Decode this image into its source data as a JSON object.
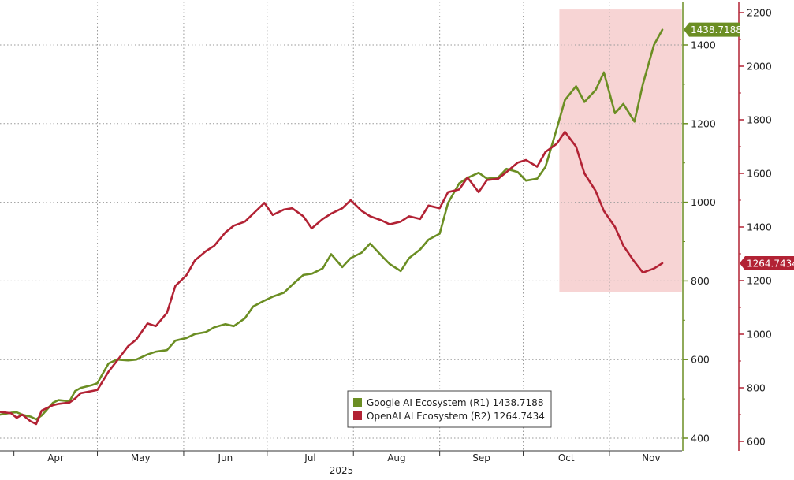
{
  "chart_data": {
    "type": "line",
    "x_axis": {
      "months": [
        "Apr",
        "May",
        "Jun",
        "Jul",
        "Aug",
        "Sep",
        "Oct",
        "Nov"
      ],
      "year": "2025"
    },
    "y_axis_r1": {
      "ticks": [
        400,
        600,
        800,
        1000,
        1200,
        1400
      ],
      "ylim": [
        370,
        1480
      ],
      "color": "#6b8e23"
    },
    "y_axis_r2": {
      "ticks": [
        600,
        800,
        1000,
        1200,
        1400,
        1600,
        1800,
        2000,
        2200
      ],
      "ylim": [
        560,
        2240
      ],
      "color": "#b22234"
    },
    "grid": true,
    "highlight_region": {
      "x_start": "2025-10-14",
      "x_end": "2025-11-27",
      "r1_low": 772,
      "r1_high": 1490,
      "color": "#f4c6c6"
    },
    "series": [
      {
        "name": "Google AI Ecosystem (R1)",
        "axis": "R1",
        "color": "#6b8e23",
        "last_value": "1438.7188",
        "points": [
          [
            "2025-03-27",
            460
          ],
          [
            "2025-03-31",
            465
          ],
          [
            "2025-04-02",
            466
          ],
          [
            "2025-04-04",
            460
          ],
          [
            "2025-04-07",
            455
          ],
          [
            "2025-04-09",
            448
          ],
          [
            "2025-04-11",
            458
          ],
          [
            "2025-04-15",
            490
          ],
          [
            "2025-04-17",
            497
          ],
          [
            "2025-04-21",
            494
          ],
          [
            "2025-04-23",
            520
          ],
          [
            "2025-04-25",
            528
          ],
          [
            "2025-04-29",
            535
          ],
          [
            "2025-05-01",
            540
          ],
          [
            "2025-05-05",
            590
          ],
          [
            "2025-05-08",
            600
          ],
          [
            "2025-05-12",
            598
          ],
          [
            "2025-05-15",
            600
          ],
          [
            "2025-05-19",
            613
          ],
          [
            "2025-05-22",
            620
          ],
          [
            "2025-05-26",
            624
          ],
          [
            "2025-05-29",
            648
          ],
          [
            "2025-06-02",
            655
          ],
          [
            "2025-06-05",
            665
          ],
          [
            "2025-06-09",
            670
          ],
          [
            "2025-06-12",
            682
          ],
          [
            "2025-06-16",
            690
          ],
          [
            "2025-06-19",
            685
          ],
          [
            "2025-06-23",
            705
          ],
          [
            "2025-06-26",
            735
          ],
          [
            "2025-06-30",
            750
          ],
          [
            "2025-07-03",
            760
          ],
          [
            "2025-07-07",
            770
          ],
          [
            "2025-07-10",
            790
          ],
          [
            "2025-07-14",
            815
          ],
          [
            "2025-07-17",
            818
          ],
          [
            "2025-07-21",
            832
          ],
          [
            "2025-07-24",
            868
          ],
          [
            "2025-07-28",
            835
          ],
          [
            "2025-07-31",
            858
          ],
          [
            "2025-08-04",
            872
          ],
          [
            "2025-08-07",
            895
          ],
          [
            "2025-08-11",
            865
          ],
          [
            "2025-08-14",
            843
          ],
          [
            "2025-08-18",
            825
          ],
          [
            "2025-08-21",
            858
          ],
          [
            "2025-08-25",
            880
          ],
          [
            "2025-08-28",
            905
          ],
          [
            "2025-09-01",
            920
          ],
          [
            "2025-09-04",
            998
          ],
          [
            "2025-09-08",
            1048
          ],
          [
            "2025-09-11",
            1062
          ],
          [
            "2025-09-15",
            1075
          ],
          [
            "2025-09-18",
            1060
          ],
          [
            "2025-09-22",
            1063
          ],
          [
            "2025-09-25",
            1085
          ],
          [
            "2025-09-29",
            1077
          ],
          [
            "2025-10-02",
            1055
          ],
          [
            "2025-10-06",
            1060
          ],
          [
            "2025-10-09",
            1090
          ],
          [
            "2025-10-13",
            1185
          ],
          [
            "2025-10-16",
            1260
          ],
          [
            "2025-10-20",
            1295
          ],
          [
            "2025-10-23",
            1255
          ],
          [
            "2025-10-27",
            1285
          ],
          [
            "2025-10-30",
            1330
          ],
          [
            "2025-11-03",
            1226
          ],
          [
            "2025-11-06",
            1250
          ],
          [
            "2025-11-10",
            1205
          ],
          [
            "2025-11-13",
            1300
          ],
          [
            "2025-11-17",
            1400
          ],
          [
            "2025-11-20",
            1438.72
          ]
        ]
      },
      {
        "name": "OpenAI AI Ecosystem (R2)",
        "axis": "R2",
        "color": "#b22234",
        "last_value": "1264.7434",
        "points": [
          [
            "2025-03-27",
            710
          ],
          [
            "2025-03-31",
            705
          ],
          [
            "2025-04-02",
            688
          ],
          [
            "2025-04-04",
            700
          ],
          [
            "2025-04-07",
            675
          ],
          [
            "2025-04-09",
            665
          ],
          [
            "2025-04-11",
            715
          ],
          [
            "2025-04-15",
            735
          ],
          [
            "2025-04-17",
            740
          ],
          [
            "2025-04-21",
            745
          ],
          [
            "2025-04-23",
            760
          ],
          [
            "2025-04-25",
            780
          ],
          [
            "2025-04-29",
            788
          ],
          [
            "2025-05-01",
            792
          ],
          [
            "2025-05-05",
            860
          ],
          [
            "2025-05-08",
            900
          ],
          [
            "2025-05-12",
            955
          ],
          [
            "2025-05-15",
            980
          ],
          [
            "2025-05-19",
            1040
          ],
          [
            "2025-05-22",
            1030
          ],
          [
            "2025-05-26",
            1080
          ],
          [
            "2025-05-29",
            1180
          ],
          [
            "2025-06-02",
            1220
          ],
          [
            "2025-06-05",
            1275
          ],
          [
            "2025-06-09",
            1310
          ],
          [
            "2025-06-12",
            1330
          ],
          [
            "2025-06-16",
            1380
          ],
          [
            "2025-06-19",
            1405
          ],
          [
            "2025-06-23",
            1420
          ],
          [
            "2025-06-26",
            1450
          ],
          [
            "2025-06-30",
            1490
          ],
          [
            "2025-07-03",
            1445
          ],
          [
            "2025-07-07",
            1465
          ],
          [
            "2025-07-10",
            1470
          ],
          [
            "2025-07-14",
            1440
          ],
          [
            "2025-07-17",
            1395
          ],
          [
            "2025-07-21",
            1430
          ],
          [
            "2025-07-24",
            1450
          ],
          [
            "2025-07-28",
            1470
          ],
          [
            "2025-07-31",
            1500
          ],
          [
            "2025-08-04",
            1460
          ],
          [
            "2025-08-07",
            1440
          ],
          [
            "2025-08-11",
            1425
          ],
          [
            "2025-08-14",
            1410
          ],
          [
            "2025-08-18",
            1420
          ],
          [
            "2025-08-21",
            1440
          ],
          [
            "2025-08-25",
            1430
          ],
          [
            "2025-08-28",
            1480
          ],
          [
            "2025-09-01",
            1470
          ],
          [
            "2025-09-04",
            1530
          ],
          [
            "2025-09-08",
            1540
          ],
          [
            "2025-09-11",
            1585
          ],
          [
            "2025-09-15",
            1530
          ],
          [
            "2025-09-18",
            1575
          ],
          [
            "2025-09-22",
            1580
          ],
          [
            "2025-09-25",
            1605
          ],
          [
            "2025-09-29",
            1640
          ],
          [
            "2025-10-02",
            1650
          ],
          [
            "2025-10-06",
            1625
          ],
          [
            "2025-10-09",
            1680
          ],
          [
            "2025-10-13",
            1710
          ],
          [
            "2025-10-16",
            1755
          ],
          [
            "2025-10-20",
            1700
          ],
          [
            "2025-10-23",
            1600
          ],
          [
            "2025-10-27",
            1535
          ],
          [
            "2025-10-30",
            1460
          ],
          [
            "2025-11-03",
            1400
          ],
          [
            "2025-11-06",
            1330
          ],
          [
            "2025-11-10",
            1270
          ],
          [
            "2025-11-13",
            1230
          ],
          [
            "2025-11-17",
            1245
          ],
          [
            "2025-11-20",
            1264.74
          ]
        ]
      }
    ],
    "legend": {
      "placement": "bottom-center",
      "entries": [
        {
          "label": "Google AI Ecosystem (R1)",
          "value": "1438.7188",
          "color": "#6b8e23"
        },
        {
          "label": "OpenAI AI Ecosystem (R2)",
          "value": "1264.7434",
          "color": "#b22234"
        }
      ]
    }
  }
}
